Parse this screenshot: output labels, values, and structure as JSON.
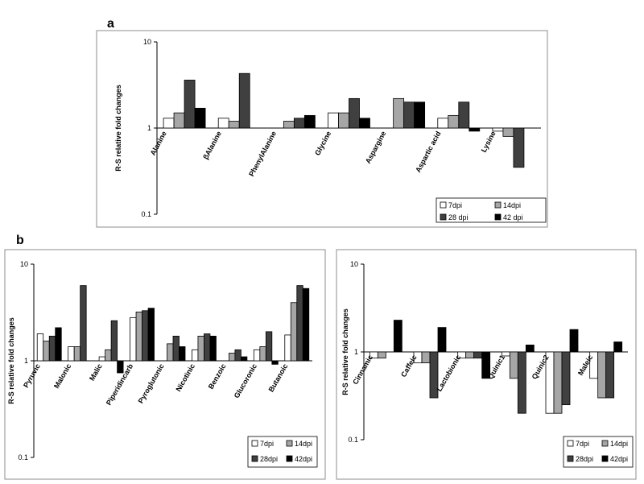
{
  "panel_labels": {
    "a": "a",
    "b": "b"
  },
  "chart_data": [
    {
      "type": "bar",
      "panel": "a",
      "yscale": "log",
      "ylim": [
        0.1,
        10
      ],
      "yticks": [
        "10",
        "1",
        "0.1"
      ],
      "ylabel": "R-S relative fold changes",
      "categories": [
        "Alanine",
        "βAlanine",
        "PhenylAlanine",
        "Glycine",
        "Aspargine",
        "Aspartic acid",
        "Lysine"
      ],
      "series": [
        {
          "name": "7dpi",
          "color": "#ffffff",
          "values": [
            1.3,
            1.3,
            null,
            1.5,
            null,
            1.3,
            0.92
          ]
        },
        {
          "name": "14dpi",
          "color": "#a6a6a6",
          "values": [
            1.5,
            1.2,
            1.2,
            1.5,
            2.2,
            1.4,
            0.8
          ]
        },
        {
          "name": "28 dpi",
          "color": "#404040",
          "values": [
            3.6,
            4.3,
            1.3,
            2.2,
            2.0,
            2.0,
            0.35
          ]
        },
        {
          "name": "42 dpi",
          "color": "#000000",
          "values": [
            1.7,
            null,
            1.4,
            1.3,
            2.0,
            0.92,
            null
          ]
        }
      ],
      "legend_position": "bottom-right"
    },
    {
      "type": "bar",
      "panel": "b-left",
      "yscale": "log",
      "ylim": [
        0.1,
        10
      ],
      "yticks": [
        "10",
        "1",
        "0.1"
      ],
      "ylabel": "R-S relative fold changes",
      "categories": [
        "Pyruvic",
        "Malonic",
        "Malic",
        "Piperidincarb",
        "Pyroglutonic",
        "Nicotinic",
        "Benzoic",
        "Glucoronic",
        "Butanoic"
      ],
      "series": [
        {
          "name": "7dpi",
          "color": "#ffffff",
          "values": [
            1.9,
            1.4,
            1.1,
            2.8,
            null,
            1.3,
            null,
            1.3,
            1.85
          ]
        },
        {
          "name": "14dpi",
          "color": "#a6a6a6",
          "values": [
            1.6,
            1.4,
            1.3,
            3.2,
            1.5,
            1.8,
            1.2,
            1.4,
            4.0
          ]
        },
        {
          "name": "28dpi",
          "color": "#404040",
          "values": [
            1.8,
            6.0,
            2.6,
            3.3,
            1.8,
            1.9,
            1.3,
            2.0,
            6.0
          ]
        },
        {
          "name": "42dpi",
          "color": "#000000",
          "values": [
            2.2,
            null,
            0.75,
            3.5,
            1.4,
            1.8,
            1.1,
            0.92,
            5.6
          ]
        }
      ],
      "legend_position": "bottom-right"
    },
    {
      "type": "bar",
      "panel": "b-right",
      "yscale": "log",
      "ylim": [
        0.1,
        10
      ],
      "yticks": [
        "10",
        "1",
        "0.1"
      ],
      "ylabel": "R-S relative fold changes",
      "categories": [
        "Cinnamic",
        "Caffeic",
        "Lactobionic",
        "Quinic1",
        "Quinic2",
        "Maleic"
      ],
      "series": [
        {
          "name": "7dpi",
          "color": "#ffffff",
          "values": [
            0.85,
            0.75,
            0.85,
            0.9,
            0.2,
            0.5
          ]
        },
        {
          "name": "14dpi",
          "color": "#a6a6a6",
          "values": [
            0.85,
            0.75,
            0.85,
            0.5,
            0.2,
            0.3
          ]
        },
        {
          "name": "28dpi",
          "color": "#404040",
          "values": [
            null,
            0.3,
            0.85,
            0.2,
            0.25,
            0.3
          ]
        },
        {
          "name": "42dpi",
          "color": "#000000",
          "values": [
            2.3,
            1.9,
            0.5,
            1.2,
            1.8,
            1.3
          ]
        }
      ],
      "legend_position": "bottom-right"
    }
  ]
}
